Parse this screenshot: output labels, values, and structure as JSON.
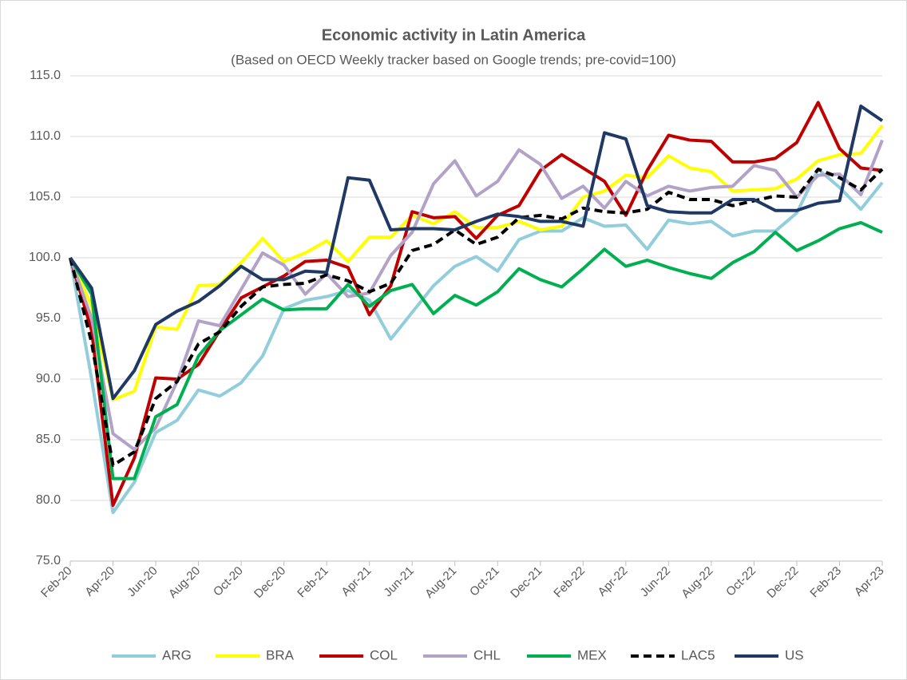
{
  "chart_data": {
    "type": "line",
    "title": "Economic activity in Latin America",
    "subtitle": "(Based on OECD Weekly tracker based on Google trends; pre-covid=100)",
    "categories": [
      "Feb-20",
      null,
      "Apr-20",
      null,
      "Jun-20",
      null,
      "Aug-20",
      null,
      "Oct-20",
      null,
      "Dec-20",
      null,
      "Feb-21",
      null,
      "Apr-21",
      null,
      "Jun-21",
      null,
      "Aug-21",
      null,
      "Oct-21",
      null,
      "Dec-21",
      null,
      "Feb-22",
      null,
      "Apr-22",
      null,
      "Jun-22",
      null,
      "Aug-22",
      null,
      "Oct-22",
      null,
      "Dec-22",
      null,
      "Feb-23",
      null,
      "Apr-23"
    ],
    "ylim": [
      75,
      115
    ],
    "yticks": [
      {
        "value": 75,
        "label": "75.0"
      },
      {
        "value": 80,
        "label": "80.0"
      },
      {
        "value": 85,
        "label": "85.0"
      },
      {
        "value": 90,
        "label": "90.0"
      },
      {
        "value": 95,
        "label": "95.0"
      },
      {
        "value": 100,
        "label": "100.0"
      },
      {
        "value": 105,
        "label": "105.0"
      },
      {
        "value": 110,
        "label": "110.0"
      },
      {
        "value": 115,
        "label": "115.0"
      }
    ],
    "grid": true,
    "legend": "bottom",
    "series": [
      {
        "name": "ARG",
        "color": "#92cddc",
        "values": [
          100,
          90,
          79,
          81.5,
          85.6,
          86.6,
          89.1,
          88.6,
          89.7,
          91.9,
          95.8,
          96.5,
          96.8,
          97.3,
          96.5,
          93.3,
          95.5,
          97.7,
          99.3,
          100.1,
          98.9,
          101.5,
          102.2,
          102.2,
          103.3,
          102.6,
          102.7,
          100.7,
          103.1,
          102.8,
          103.0,
          101.8,
          102.2,
          102.2,
          103.7,
          107.3,
          105.8,
          104.0,
          106.2
        ]
      },
      {
        "name": "BRA",
        "color": "#ffff00",
        "values": [
          100,
          96,
          88.3,
          89.0,
          94.3,
          94.1,
          97.7,
          97.8,
          99.6,
          101.6,
          99.7,
          100.4,
          101.4,
          99.7,
          101.7,
          101.7,
          103.5,
          102.8,
          103.8,
          102.5,
          102.5,
          103.0,
          102.3,
          102.6,
          105.0,
          105.5,
          106.8,
          106.6,
          108.4,
          107.4,
          107.1,
          105.5,
          105.6,
          105.7,
          106.5,
          108.0,
          108.5,
          108.6,
          110.9
        ]
      },
      {
        "name": "COL",
        "color": "#c00000",
        "values": [
          100,
          94,
          79.6,
          83.5,
          90.1,
          90.0,
          91.2,
          94.0,
          96.7,
          97.6,
          98.5,
          99.7,
          99.8,
          99.2,
          95.3,
          97.7,
          103.8,
          103.3,
          103.4,
          101.6,
          103.5,
          104.3,
          107.2,
          108.5,
          107.4,
          106.3,
          103.5,
          107.2,
          110.1,
          109.7,
          109.6,
          107.9,
          107.9,
          108.2,
          109.5,
          112.8,
          109.0,
          107.4,
          107.2
        ]
      },
      {
        "name": "CHL",
        "color": "#b3a2c7",
        "values": [
          100,
          95,
          85.5,
          84.2,
          86.0,
          89.8,
          94.8,
          94.4,
          97.4,
          100.4,
          99.4,
          97.0,
          98.7,
          96.8,
          97.1,
          100.2,
          102.1,
          106.1,
          108.0,
          105.1,
          106.3,
          108.9,
          107.7,
          104.9,
          105.9,
          104.1,
          106.3,
          105.1,
          105.9,
          105.5,
          105.8,
          105.9,
          107.6,
          107.2,
          105.0,
          106.8,
          106.9,
          105.2,
          109.7
        ]
      },
      {
        "name": "MEX",
        "color": "#00b050",
        "values": [
          100,
          97,
          81.8,
          81.8,
          86.9,
          87.9,
          91.9,
          94.0,
          95.3,
          96.6,
          95.7,
          95.8,
          95.8,
          97.8,
          96.0,
          97.3,
          97.8,
          95.4,
          96.9,
          96.1,
          97.2,
          99.1,
          98.2,
          97.6,
          99.1,
          100.7,
          99.3,
          99.8,
          99.2,
          98.7,
          98.3,
          99.6,
          100.5,
          102.1,
          100.6,
          101.4,
          102.4,
          102.9,
          102.1
        ]
      },
      {
        "name": "LAC5",
        "color": "#000000",
        "dashed": true,
        "values": [
          100,
          93,
          82.9,
          84.0,
          88.4,
          89.8,
          92.9,
          93.9,
          96.0,
          97.6,
          97.8,
          97.9,
          98.6,
          98.1,
          97.2,
          97.9,
          100.6,
          101.1,
          102.3,
          101.1,
          101.7,
          103.3,
          103.5,
          103.2,
          104.1,
          103.8,
          103.7,
          104.0,
          105.4,
          104.8,
          104.8,
          104.3,
          104.7,
          105.1,
          105.0,
          107.3,
          106.6,
          105.6,
          107.3
        ]
      },
      {
        "name": "US",
        "color": "#1f3864",
        "values": [
          100,
          97.5,
          88.4,
          90.7,
          94.5,
          95.6,
          96.4,
          97.7,
          99.3,
          98.2,
          98.2,
          98.9,
          98.8,
          106.6,
          106.4,
          102.3,
          102.4,
          102.4,
          102.3,
          103.0,
          103.6,
          103.4,
          103.0,
          103.0,
          102.6,
          110.3,
          109.8,
          104.3,
          103.8,
          103.7,
          103.7,
          104.8,
          104.8,
          103.9,
          103.9,
          104.5,
          104.7,
          112.5,
          111.3
        ]
      }
    ]
  }
}
